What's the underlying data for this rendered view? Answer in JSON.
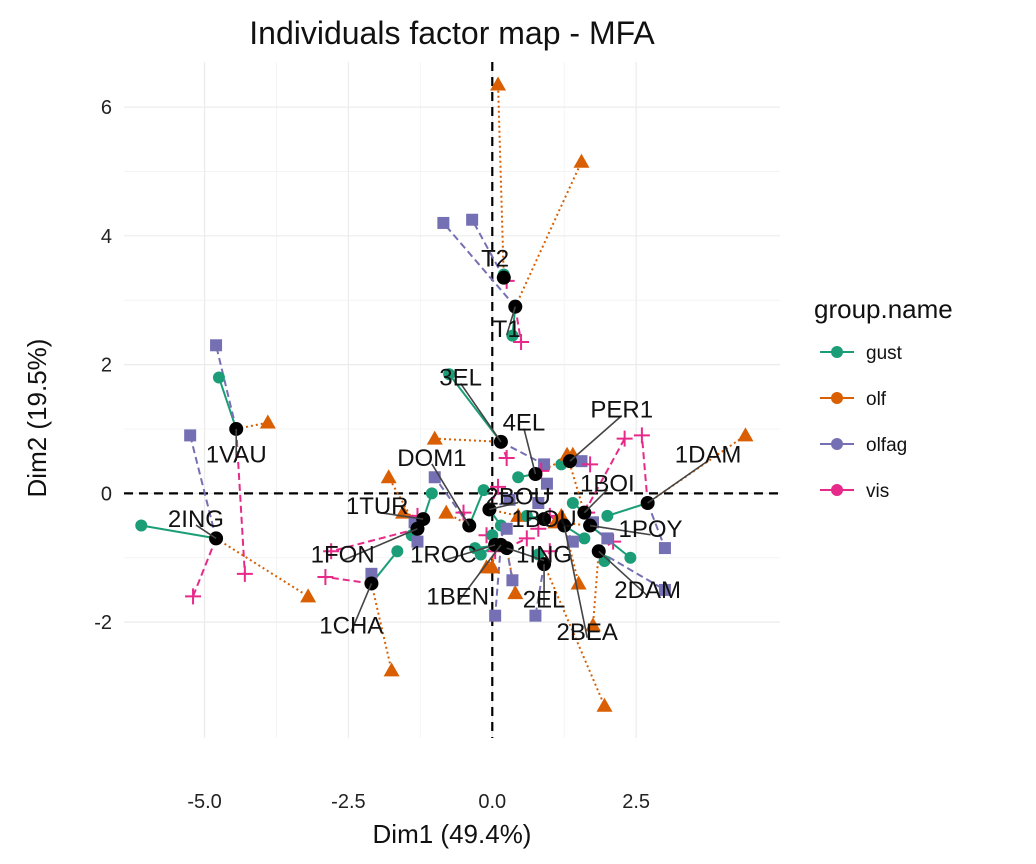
{
  "chart_data": {
    "type": "scatter",
    "title": "Individuals factor map - MFA",
    "xlabel": "Dim1 (49.4%)",
    "ylabel": "Dim2 (19.5%)",
    "xlim": [
      -6.4,
      5.0
    ],
    "ylim": [
      -3.8,
      6.7
    ],
    "x_ticks": [
      -5.0,
      -2.5,
      0.0,
      2.5
    ],
    "x_tick_labels": [
      "-5.0",
      "-2.5",
      "0.0",
      "2.5"
    ],
    "y_ticks": [
      -2,
      0,
      2,
      4,
      6
    ],
    "y_tick_labels": [
      "-2",
      "0",
      "2",
      "4",
      "6"
    ],
    "grid": true,
    "reference_lines": {
      "x": 0,
      "y": 0,
      "style": "dashed"
    },
    "legend": {
      "title": "group.name",
      "placement": "right",
      "entries": [
        {
          "name": "gust",
          "color": "#1b9e77"
        },
        {
          "name": "olf",
          "color": "#d95f02"
        },
        {
          "name": "olfag",
          "color": "#7570b3"
        },
        {
          "name": "vis",
          "color": "#e7298a"
        }
      ]
    },
    "series_style": {
      "gust": {
        "color": "#1b9e77",
        "marker": "circle",
        "line": "solid"
      },
      "olf": {
        "color": "#d95f02",
        "marker": "triangle",
        "line": "dotted"
      },
      "olfag": {
        "color": "#7570b3",
        "marker": "square",
        "line": "dashed"
      },
      "vis": {
        "color": "#e7298a",
        "marker": "plus",
        "line": "dashed"
      }
    },
    "individuals": [
      {
        "label": "T2",
        "x": 0.2,
        "y": 3.35,
        "label_x": 0.05,
        "label_y": 3.65,
        "partial": {
          "gust": [
            0.2,
            3.4
          ],
          "olf": [
            0.1,
            6.35
          ],
          "olfag": [
            -0.35,
            4.25
          ],
          "vis": [
            0.25,
            3.3
          ]
        }
      },
      {
        "label": "T1",
        "x": 0.4,
        "y": 2.9,
        "label_x": 0.25,
        "label_y": 2.55,
        "partial": {
          "gust": [
            0.35,
            2.45
          ],
          "olf": [
            1.55,
            5.15
          ],
          "olfag": [
            -0.85,
            4.2
          ],
          "vis": [
            0.5,
            2.35
          ]
        }
      },
      {
        "label": "1VAU",
        "x": -4.45,
        "y": 1.0,
        "label_x": -4.45,
        "label_y": 0.6,
        "partial": {
          "gust": [
            -4.75,
            1.8
          ],
          "olf": [
            -3.9,
            1.1
          ],
          "olfag": [
            -4.8,
            2.3
          ],
          "vis": [
            -4.3,
            -1.25
          ]
        }
      },
      {
        "label": "2ING",
        "x": -4.8,
        "y": -0.7,
        "label_x": -5.15,
        "label_y": -0.4,
        "partial": {
          "gust": [
            -6.1,
            -0.5
          ],
          "olf": [
            -3.2,
            -1.6
          ],
          "olfag": [
            -5.25,
            0.9
          ],
          "vis": [
            -5.2,
            -1.6
          ]
        }
      },
      {
        "label": "3EL",
        "x": 0.15,
        "y": 0.8,
        "label_x": -0.55,
        "label_y": 1.8,
        "partial": {
          "gust": [
            -0.75,
            1.85
          ],
          "olf": [
            -1.0,
            0.85
          ],
          "olfag": [
            0.9,
            0.45
          ],
          "vis": [
            0.25,
            0.55
          ]
        }
      },
      {
        "label": "4EL",
        "x": 0.75,
        "y": 0.3,
        "label_x": 0.55,
        "label_y": 1.1,
        "partial": {
          "gust": [
            0.45,
            0.25
          ],
          "olf": [
            1.3,
            0.55
          ],
          "olfag": [
            0.95,
            0.15
          ],
          "vis": [
            0.85,
            0.35
          ]
        }
      },
      {
        "label": "PER1",
        "x": 1.35,
        "y": 0.5,
        "label_x": 2.25,
        "label_y": 1.3,
        "partial": {
          "gust": [
            1.2,
            0.45
          ],
          "olf": [
            1.4,
            0.6
          ],
          "olfag": [
            1.55,
            0.5
          ],
          "vis": [
            1.7,
            0.45
          ]
        }
      },
      {
        "label": "1DAM",
        "x": 2.7,
        "y": -0.15,
        "label_x": 3.75,
        "label_y": 0.6,
        "partial": {
          "gust": [
            2.0,
            -0.35
          ],
          "olf": [
            4.4,
            0.9
          ],
          "olfag": [
            3.0,
            -0.85
          ],
          "vis": [
            2.6,
            0.9
          ]
        }
      },
      {
        "label": "1BOI",
        "x": 1.6,
        "y": -0.3,
        "label_x": 2.0,
        "label_y": 0.15,
        "partial": {
          "gust": [
            1.4,
            -0.15
          ],
          "olf": [
            1.3,
            0.6
          ],
          "olfag": [
            1.75,
            -0.45
          ],
          "vis": [
            2.3,
            0.85
          ]
        }
      },
      {
        "label": "DOM1",
        "x": -0.4,
        "y": -0.5,
        "label_x": -1.05,
        "label_y": 0.55,
        "partial": {
          "gust": [
            -0.15,
            0.05
          ],
          "olf": [
            -0.8,
            -0.3
          ],
          "olfag": [
            -1.0,
            0.25
          ],
          "vis": [
            -0.5,
            -0.3
          ]
        }
      },
      {
        "label": "2BOU",
        "x": -0.05,
        "y": -0.25,
        "label_x": 0.45,
        "label_y": -0.05,
        "partial": {
          "gust": [
            0.15,
            -0.5
          ],
          "olf": [
            0.45,
            -0.35
          ],
          "olfag": [
            0.3,
            -0.1
          ],
          "vis": [
            0.1,
            0.1
          ]
        }
      },
      {
        "label": "1TUR",
        "x": -1.2,
        "y": -0.4,
        "label_x": -2.0,
        "label_y": -0.2,
        "partial": {
          "gust": [
            -1.05,
            0.0
          ],
          "olf": [
            -1.55,
            -0.3
          ],
          "olfag": [
            -1.35,
            -0.45
          ],
          "vis": [
            -1.3,
            -0.35
          ]
        }
      },
      {
        "label": "1FON",
        "x": -1.3,
        "y": -0.55,
        "label_x": -2.6,
        "label_y": -0.95,
        "partial": {
          "gust": [
            -1.4,
            -0.65
          ],
          "olf": [
            -1.8,
            0.25
          ],
          "olfag": [
            -1.3,
            -0.75
          ],
          "vis": [
            -2.8,
            -0.9
          ]
        }
      },
      {
        "label": "1ROC",
        "x": 0.05,
        "y": -0.8,
        "label_x": -0.85,
        "label_y": -0.95,
        "partial": {
          "gust": [
            -0.2,
            -0.95
          ],
          "olf": [
            0.0,
            -1.15
          ],
          "olfag": [
            0.25,
            -0.55
          ],
          "vis": [
            -0.1,
            -0.65
          ]
        }
      },
      {
        "label": "1ING",
        "x": 0.25,
        "y": -0.85,
        "label_x": 0.9,
        "label_y": -0.95,
        "partial": {
          "gust": [
            0.0,
            -0.65
          ],
          "olf": [
            0.4,
            -1.55
          ],
          "olfag": [
            0.35,
            -1.35
          ],
          "vis": [
            0.6,
            -0.7
          ]
        }
      },
      {
        "label": "1BEN",
        "x": 0.15,
        "y": -0.8,
        "label_x": -0.6,
        "label_y": -1.6,
        "partial": {
          "gust": [
            -0.3,
            -0.85
          ],
          "olf": [
            -0.1,
            -1.15
          ],
          "olfag": [
            0.05,
            -1.9
          ],
          "vis": [
            0.05,
            -0.9
          ]
        }
      },
      {
        "label": "1CHA",
        "x": -2.1,
        "y": -1.4,
        "label_x": -2.45,
        "label_y": -2.05,
        "partial": {
          "gust": [
            -1.65,
            -0.9
          ],
          "olf": [
            -1.75,
            -2.75
          ],
          "olfag": [
            -2.1,
            -1.25
          ],
          "vis": [
            -2.9,
            -1.3
          ]
        }
      },
      {
        "label": "2EL",
        "x": 0.9,
        "y": -1.1,
        "label_x": 0.9,
        "label_y": -1.65,
        "partial": {
          "gust": [
            0.8,
            -0.95
          ],
          "olf": [
            1.95,
            -3.3
          ],
          "olfag": [
            0.75,
            -1.9
          ],
          "vis": [
            1.0,
            -0.9
          ]
        }
      },
      {
        "label": "2DAM",
        "x": 1.85,
        "y": -0.9,
        "label_x": 2.7,
        "label_y": -1.5,
        "partial": {
          "gust": [
            1.95,
            -1.05
          ],
          "olf": [
            1.75,
            -2.05
          ],
          "olfag": [
            3.0,
            -1.5
          ],
          "vis": [
            2.1,
            -0.75
          ]
        }
      },
      {
        "label": "2BEA",
        "x": 1.25,
        "y": -0.5,
        "label_x": 1.65,
        "label_y": -2.15,
        "partial": {
          "gust": [
            1.6,
            -0.7
          ],
          "olf": [
            1.5,
            -1.4
          ],
          "olfag": [
            1.4,
            -0.75
          ],
          "vis": [
            1.0,
            -0.35
          ]
        }
      },
      {
        "label": "1POY",
        "x": 1.7,
        "y": -0.5,
        "label_x": 2.75,
        "label_y": -0.55,
        "partial": {
          "gust": [
            2.4,
            -1.0
          ],
          "olf": [
            1.1,
            -0.45
          ],
          "olfag": [
            2.0,
            -0.7
          ],
          "vis": [
            1.65,
            -0.3
          ]
        }
      },
      {
        "label": "1BOU",
        "x": 0.9,
        "y": -0.4,
        "label_x": 0.9,
        "label_y": -0.4,
        "partial": {
          "gust": [
            0.6,
            -0.35
          ],
          "olf": [
            1.2,
            -0.35
          ],
          "olfag": [
            0.8,
            -0.15
          ],
          "vis": [
            0.8,
            -0.55
          ]
        }
      }
    ]
  }
}
